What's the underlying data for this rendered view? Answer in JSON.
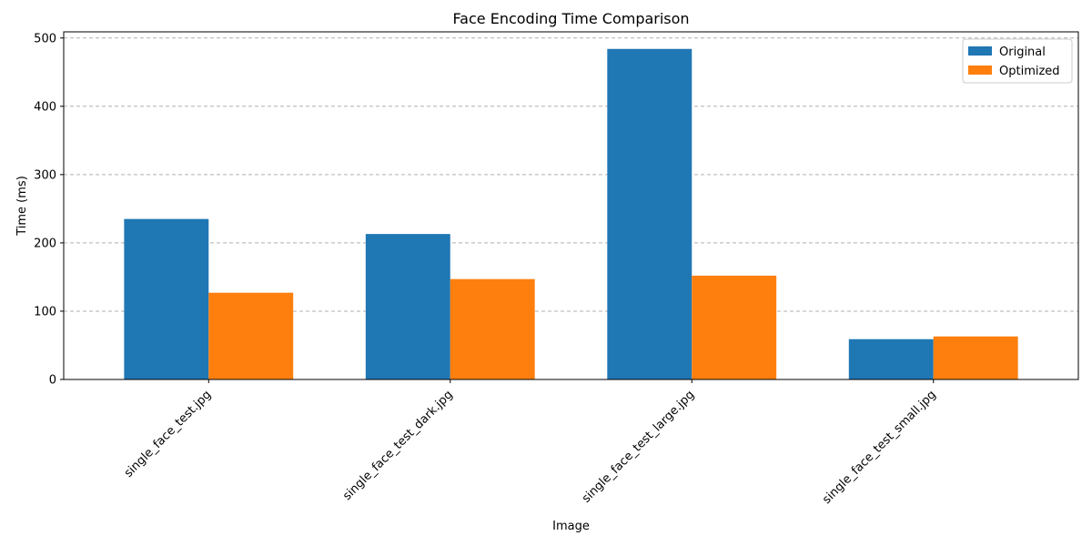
{
  "chart_data": {
    "type": "bar",
    "title": "Face Encoding Time Comparison",
    "xlabel": "Image",
    "ylabel": "Time (ms)",
    "categories": [
      "single_face_test.jpg",
      "single_face_test_dark.jpg",
      "single_face_test_large.jpg",
      "single_face_test_small.jpg"
    ],
    "series": [
      {
        "name": "Original",
        "values": [
          235,
          213,
          484,
          59
        ],
        "color": "#1f77b4"
      },
      {
        "name": "Optimized",
        "values": [
          127,
          147,
          152,
          63
        ],
        "color": "#ff7f0e"
      }
    ],
    "ylim": [
      0,
      509
    ],
    "yticks": [
      0,
      100,
      200,
      300,
      400,
      500
    ],
    "grid": "y-dashed",
    "legend_position": "top-right"
  }
}
